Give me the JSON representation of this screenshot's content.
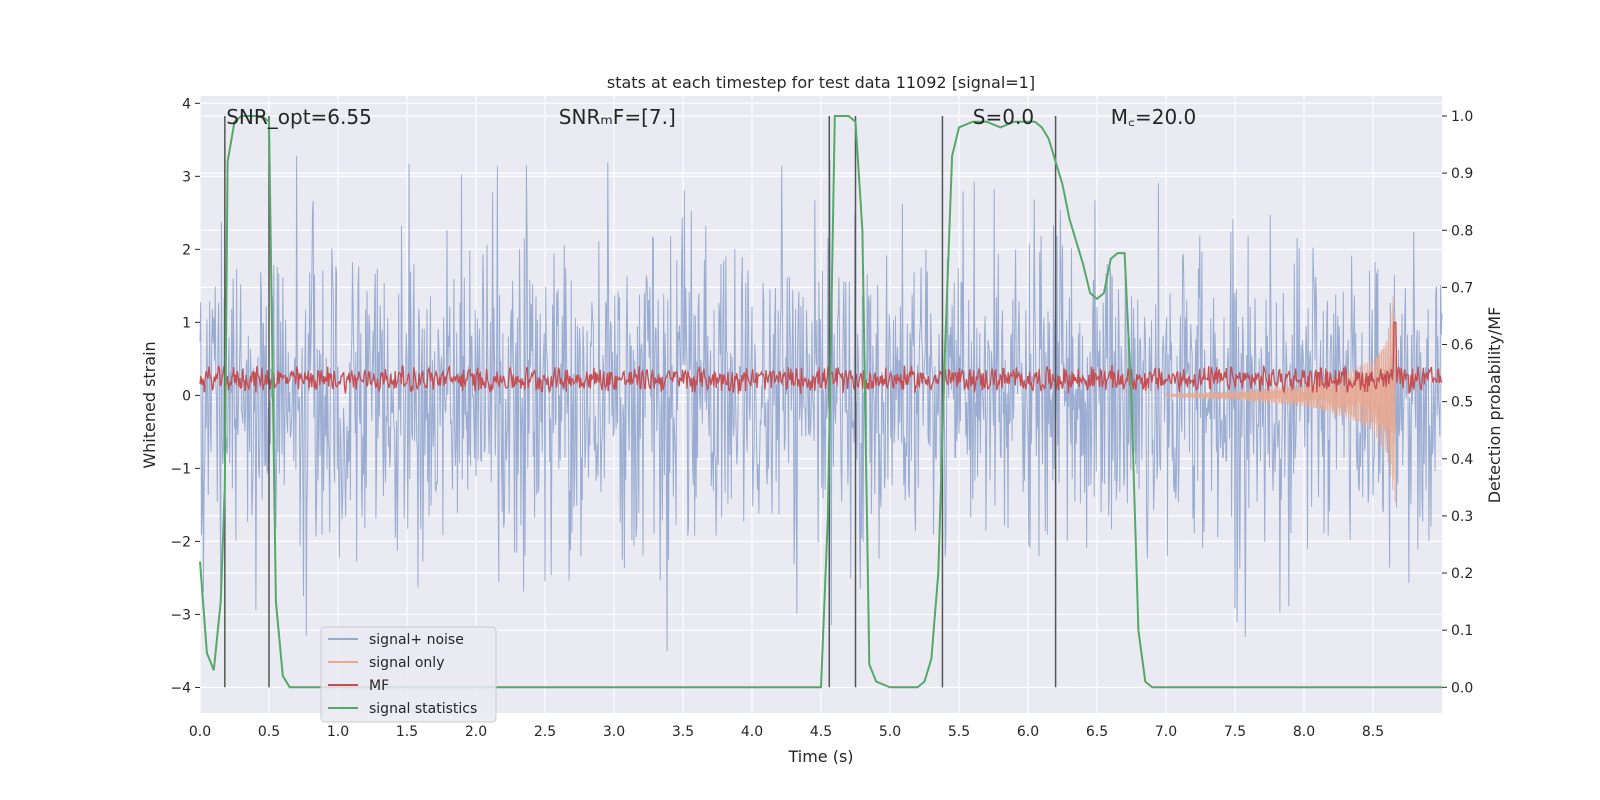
{
  "chart_data": {
    "type": "line",
    "title": "stats at each timestep for test data 11092 [signal=1]",
    "xlabel": "Time (s)",
    "ylabel_left": "Whitened strain",
    "ylabel_right": "Detection probability/MF",
    "xlim": [
      0.0,
      9.0
    ],
    "ylim_left": [
      -4.35,
      4.1
    ],
    "ylim_right": [
      -0.045,
      1.035
    ],
    "grid": true,
    "x_ticks": [
      0.0,
      0.5,
      1.0,
      1.5,
      2.0,
      2.5,
      3.0,
      3.5,
      4.0,
      4.5,
      5.0,
      5.5,
      6.0,
      6.5,
      7.0,
      7.5,
      8.0,
      8.5
    ],
    "x_tick_labels": [
      "0.0",
      "0.5",
      "1.0",
      "1.5",
      "2.0",
      "2.5",
      "3.0",
      "3.5",
      "4.0",
      "4.5",
      "5.0",
      "5.5",
      "6.0",
      "6.5",
      "7.0",
      "7.5",
      "8.0",
      "8.5"
    ],
    "y_left_ticks": [
      -4,
      -3,
      -2,
      -1,
      0,
      1,
      2,
      3,
      4
    ],
    "y_left_tick_labels": [
      "−4",
      "−3",
      "−2",
      "−1",
      "0",
      "1",
      "2",
      "3",
      "4"
    ],
    "y_right_ticks": [
      0.0,
      0.1,
      0.2,
      0.3,
      0.4,
      0.5,
      0.6,
      0.7,
      0.8,
      0.9,
      1.0
    ],
    "y_right_tick_labels": [
      "0.0",
      "0.1",
      "0.2",
      "0.3",
      "0.4",
      "0.5",
      "0.6",
      "0.7",
      "0.8",
      "0.9",
      "1.0"
    ],
    "annotations": [
      {
        "name": "snr-opt-annotation",
        "text": "SNR_opt=6.55",
        "x": 0.19
      },
      {
        "name": "snr-mf-annotation",
        "text": "SNRₘF=[7.]",
        "x": 2.6
      },
      {
        "name": "s-annotation",
        "text": "S=0.0",
        "x": 5.6
      },
      {
        "name": "mc-annotation",
        "text": "M꜀=20.0",
        "x": 6.6
      }
    ],
    "legend": {
      "placement": "lower-left",
      "entries": [
        {
          "label": "signal+ noise",
          "color": "#96a9cf"
        },
        {
          "label": "signal only",
          "color": "#e8a990"
        },
        {
          "label": "MF",
          "color": "#c44e52"
        },
        {
          "label": "signal statistics",
          "color": "#55a868"
        }
      ]
    },
    "vertical_markers_s": [
      0.18,
      0.5,
      4.56,
      4.75,
      5.38,
      6.2
    ],
    "noise_envelope": {
      "x": [
        0.0,
        0.5,
        1.0,
        1.5,
        2.0,
        2.5,
        3.0,
        3.5,
        4.0,
        4.5,
        5.0,
        5.5,
        6.0,
        6.5,
        7.0,
        7.5,
        8.0,
        8.5,
        9.0
      ],
      "upper": [
        3.3,
        3.4,
        3.1,
        3.2,
        3.3,
        3.1,
        3.2,
        3.3,
        3.2,
        3.3,
        3.5,
        3.2,
        3.4,
        3.2,
        3.3,
        3.1,
        3.3,
        3.6,
        3.3
      ],
      "lower": [
        -3.2,
        -3.4,
        -3.2,
        -3.3,
        -3.4,
        -3.2,
        -4.0,
        -3.5,
        -3.3,
        -3.4,
        -3.3,
        -3.5,
        -3.3,
        -3.3,
        -3.4,
        -3.2,
        -3.9,
        -3.3,
        -3.2
      ]
    },
    "signal_only": {
      "x": [
        7.0,
        7.5,
        8.0,
        8.3,
        8.5,
        8.6,
        8.66
      ],
      "amplitude": [
        0.02,
        0.06,
        0.15,
        0.3,
        0.5,
        0.8,
        1.55
      ]
    },
    "mf": {
      "x": [
        0.0,
        9.0
      ],
      "mean": 0.22,
      "spread": 0.2,
      "peak_x": 8.66,
      "peak_value": 1.0
    },
    "series": [
      {
        "name": "signal statistics",
        "axis": "right",
        "x": [
          0.0,
          0.05,
          0.1,
          0.15,
          0.18,
          0.2,
          0.25,
          0.3,
          0.35,
          0.4,
          0.45,
          0.5,
          0.55,
          0.6,
          0.65,
          0.7,
          1.0,
          2.0,
          3.0,
          4.0,
          4.5,
          4.55,
          4.6,
          4.65,
          4.7,
          4.75,
          4.8,
          4.85,
          4.9,
          5.0,
          5.2,
          5.25,
          5.3,
          5.35,
          5.4,
          5.45,
          5.5,
          5.6,
          5.7,
          5.8,
          5.9,
          6.0,
          6.05,
          6.1,
          6.15,
          6.2,
          6.25,
          6.3,
          6.35,
          6.4,
          6.45,
          6.5,
          6.55,
          6.6,
          6.65,
          6.7,
          6.75,
          6.8,
          6.85,
          6.9,
          7.0,
          7.2,
          7.5,
          8.0,
          8.5,
          9.0
        ],
        "y": [
          0.22,
          0.06,
          0.03,
          0.15,
          0.35,
          0.92,
          0.99,
          1.0,
          1.0,
          1.0,
          1.0,
          0.99,
          0.15,
          0.02,
          0.0,
          0.0,
          0.0,
          0.0,
          0.0,
          0.0,
          0.0,
          0.3,
          1.0,
          1.0,
          1.0,
          0.99,
          0.8,
          0.04,
          0.01,
          0.0,
          0.0,
          0.01,
          0.05,
          0.2,
          0.6,
          0.93,
          0.98,
          0.99,
          0.99,
          0.98,
          0.99,
          0.99,
          0.99,
          0.98,
          0.96,
          0.92,
          0.88,
          0.82,
          0.78,
          0.74,
          0.69,
          0.68,
          0.69,
          0.75,
          0.76,
          0.76,
          0.5,
          0.1,
          0.01,
          0.0,
          0.0,
          0.0,
          0.0,
          0.0,
          0.0,
          0.0
        ]
      }
    ]
  }
}
